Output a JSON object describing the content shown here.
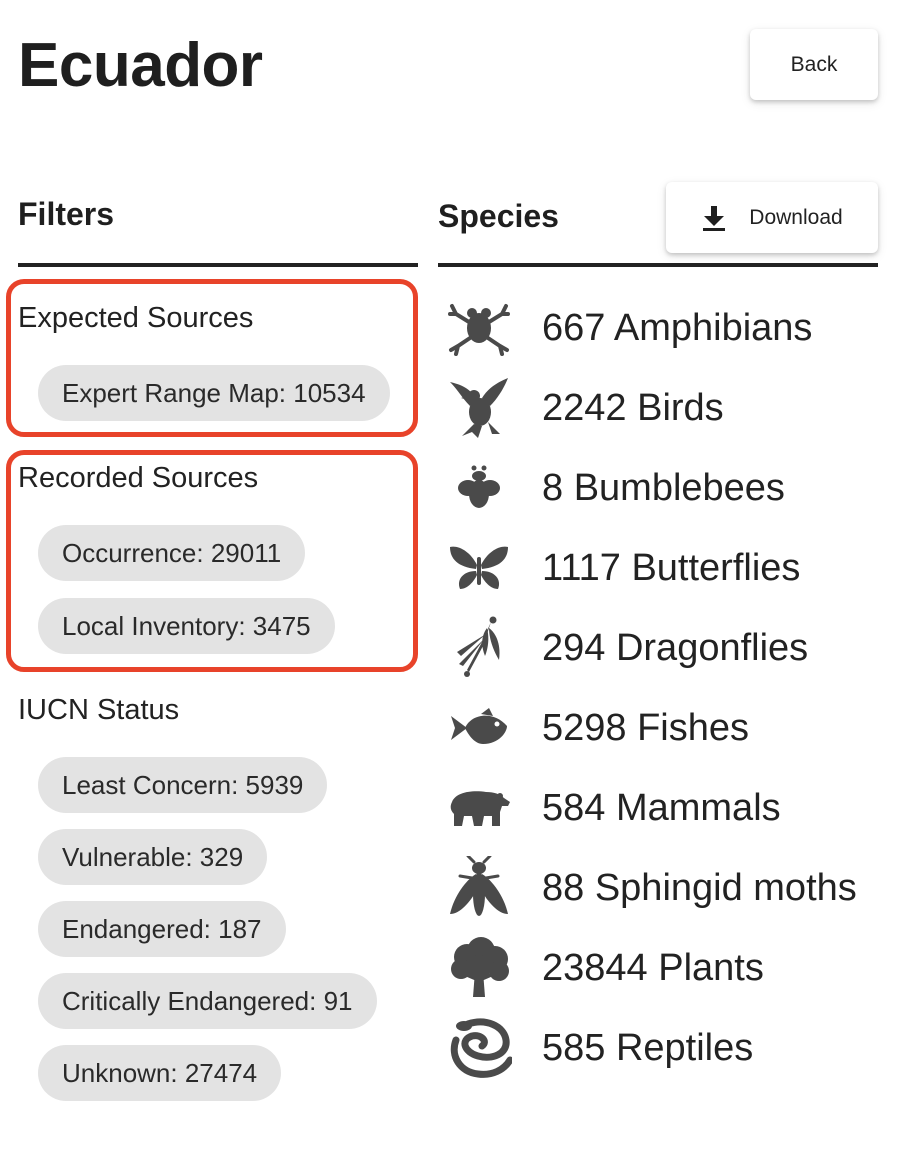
{
  "page": {
    "title": "Ecuador",
    "back_label": "Back"
  },
  "filters": {
    "heading": "Filters",
    "groups": [
      {
        "label": "Expected Sources",
        "chips": [
          "Expert Range Map: 10534"
        ]
      },
      {
        "label": "Recorded Sources",
        "chips": [
          "Occurrence: 29011",
          "Local Inventory: 3475"
        ]
      },
      {
        "label": "IUCN Status",
        "chips": [
          "Least Concern: 5939",
          "Vulnerable: 329",
          "Endangered: 187",
          "Critically Endangered: 91",
          "Unknown: 27474"
        ]
      }
    ]
  },
  "species": {
    "heading": "Species",
    "download_label": "Download",
    "download_icon": "download-icon",
    "items": [
      {
        "label": "667 Amphibians",
        "icon": "frog-icon"
      },
      {
        "label": "2242 Birds",
        "icon": "bird-icon"
      },
      {
        "label": "8 Bumblebees",
        "icon": "bee-icon"
      },
      {
        "label": "1117 Butterflies",
        "icon": "butterfly-icon"
      },
      {
        "label": "294 Dragonflies",
        "icon": "dragonfly-icon"
      },
      {
        "label": "5298 Fishes",
        "icon": "fish-icon"
      },
      {
        "label": "584 Mammals",
        "icon": "bear-icon"
      },
      {
        "label": "88 Sphingid moths",
        "icon": "moth-icon"
      },
      {
        "label": "23844 Plants",
        "icon": "tree-icon"
      },
      {
        "label": "585 Reptiles",
        "icon": "snake-icon"
      }
    ]
  },
  "colors": {
    "highlight": "#e8432a",
    "chip_bg": "#e3e3e3",
    "icon": "#4a4a4a"
  }
}
